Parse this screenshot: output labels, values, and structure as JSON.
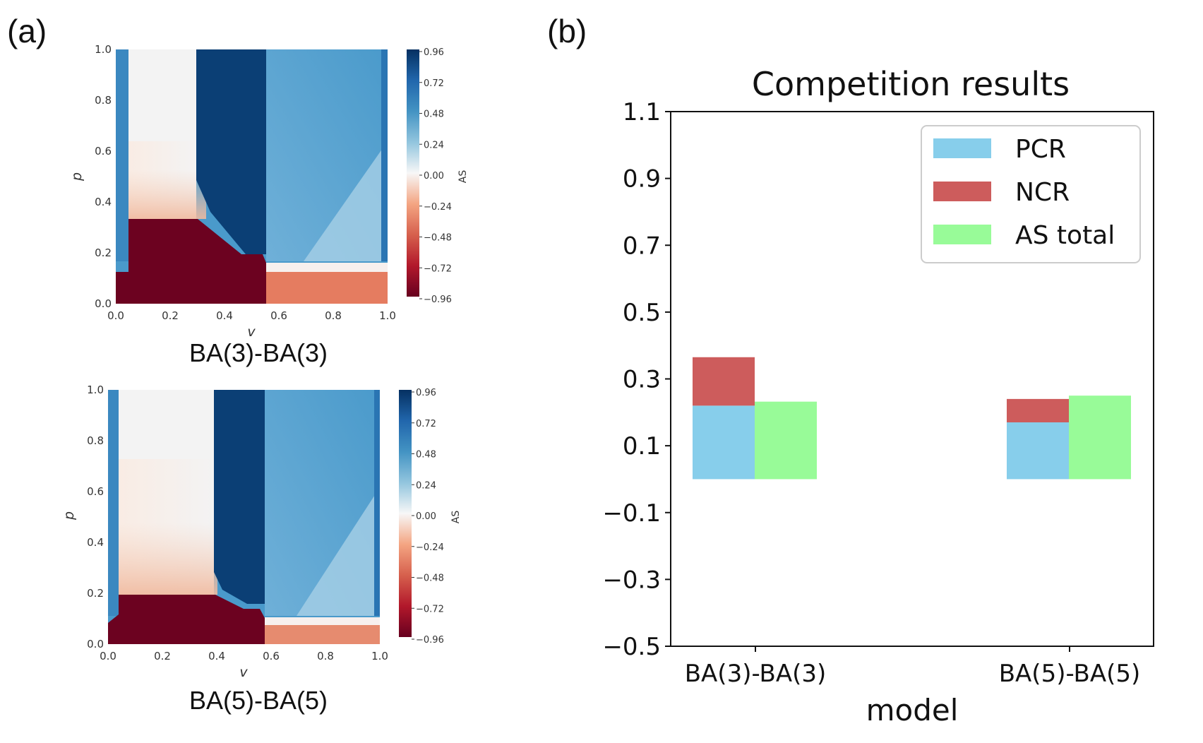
{
  "panel_labels": [
    "(a)",
    "(b)"
  ],
  "chart_data": [
    {
      "type": "heatmap",
      "title": "BA(3)-BA(3)",
      "xlabel": "v",
      "ylabel": "p",
      "xlim": [
        0,
        1
      ],
      "ylim": [
        0,
        1
      ],
      "x_ticks": [
        "0.0",
        "0.2",
        "0.4",
        "0.6",
        "0.8",
        "1.0"
      ],
      "y_ticks": [
        "0.0",
        "0.2",
        "0.4",
        "0.6",
        "0.8",
        "1.0"
      ],
      "colorbar": {
        "label": "AS",
        "ticks": [
          "0.96",
          "0.72",
          "0.48",
          "0.24",
          "0.00",
          "−0.24",
          "−0.48",
          "−0.72",
          "−0.96"
        ],
        "colormap": "RdBu",
        "range": [
          -0.96,
          0.96
        ]
      },
      "regions": [
        {
          "v_range": [
            0.0,
            0.04
          ],
          "p_range": [
            0.15,
            1.0
          ],
          "value": 0.7
        },
        {
          "v_range": [
            0.04,
            0.3
          ],
          "p_range": [
            0.35,
            1.0
          ],
          "value": 0.0
        },
        {
          "v_range": [
            0.0,
            0.3
          ],
          "p_range": [
            0.0,
            0.35
          ],
          "value": -0.96
        },
        {
          "v_range": [
            0.3,
            0.55
          ],
          "p_range": [
            0.2,
            1.0
          ],
          "value": 0.96
        },
        {
          "v_range": [
            0.55,
            1.0
          ],
          "p_range": [
            0.15,
            1.0
          ],
          "value": 0.55
        },
        {
          "v_range": [
            0.55,
            1.0
          ],
          "p_range": [
            0.0,
            0.13
          ],
          "value": -0.55
        },
        {
          "v_range": [
            0.97,
            1.0
          ],
          "p_range": [
            0.15,
            1.0
          ],
          "value": 0.85
        }
      ]
    },
    {
      "type": "heatmap",
      "title": "BA(5)-BA(5)",
      "xlabel": "v",
      "ylabel": "p",
      "xlim": [
        0,
        1
      ],
      "ylim": [
        0,
        1
      ],
      "x_ticks": [
        "0.0",
        "0.2",
        "0.4",
        "0.6",
        "0.8",
        "1.0"
      ],
      "y_ticks": [
        "0.0",
        "0.2",
        "0.4",
        "0.6",
        "0.8",
        "1.0"
      ],
      "colorbar": {
        "label": "AS",
        "ticks": [
          "0.96",
          "0.72",
          "0.48",
          "0.24",
          "0.00",
          "−0.24",
          "−0.48",
          "−0.72",
          "−0.96"
        ],
        "colormap": "RdBu",
        "range": [
          -0.96,
          0.96
        ]
      },
      "regions": [
        {
          "v_range": [
            0.0,
            0.04
          ],
          "p_range": [
            0.1,
            1.0
          ],
          "value": 0.7
        },
        {
          "v_range": [
            0.04,
            0.4
          ],
          "p_range": [
            0.18,
            1.0
          ],
          "value": 0.0
        },
        {
          "v_range": [
            0.0,
            0.4
          ],
          "p_range": [
            0.0,
            0.18
          ],
          "value": -0.96
        },
        {
          "v_range": [
            0.4,
            0.55
          ],
          "p_range": [
            0.15,
            1.0
          ],
          "value": 0.96
        },
        {
          "v_range": [
            0.55,
            1.0
          ],
          "p_range": [
            0.1,
            1.0
          ],
          "value": 0.55
        },
        {
          "v_range": [
            0.55,
            1.0
          ],
          "p_range": [
            0.0,
            0.08
          ],
          "value": -0.55
        },
        {
          "v_range": [
            0.97,
            1.0
          ],
          "p_range": [
            0.1,
            1.0
          ],
          "value": 0.85
        }
      ]
    },
    {
      "type": "bar",
      "stacked": true,
      "title": "Competition results",
      "xlabel": "model",
      "ylabel": "",
      "categories": [
        "BA(3)-BA(3)",
        "BA(5)-BA(5)"
      ],
      "ylim": [
        -0.5,
        1.1
      ],
      "y_ticks": [
        "1.1",
        "0.9",
        "0.7",
        "0.5",
        "0.3",
        "0.1",
        "−0.1",
        "−0.3",
        "−0.5"
      ],
      "series": [
        {
          "name": "PCR",
          "values": [
            0.22,
            0.17
          ],
          "color": "#87ceeb",
          "group": "left"
        },
        {
          "name": "NCR",
          "values": [
            0.145,
            0.07
          ],
          "color": "#cd5c5c",
          "group": "left"
        },
        {
          "name": "AS total",
          "values": [
            0.232,
            0.25
          ],
          "color": "#98fb98",
          "group": "right"
        }
      ],
      "legend": "top-right"
    }
  ]
}
